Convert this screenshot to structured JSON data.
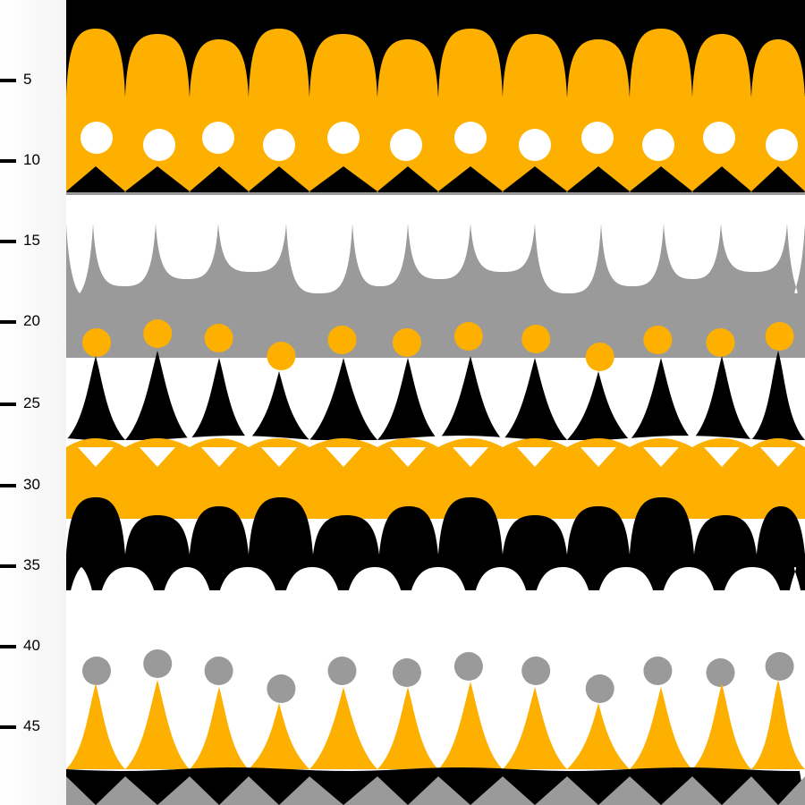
{
  "ruler": {
    "ticks": [
      "5",
      "10",
      "15",
      "20",
      "25",
      "30",
      "35",
      "40",
      "45"
    ]
  },
  "colors": {
    "black": "#000000",
    "yellow": "#fdb000",
    "white": "#ffffff",
    "gray": "#9b9a9a"
  },
  "pattern": {
    "name": "fabric-print-scallops-dots-triangles"
  }
}
